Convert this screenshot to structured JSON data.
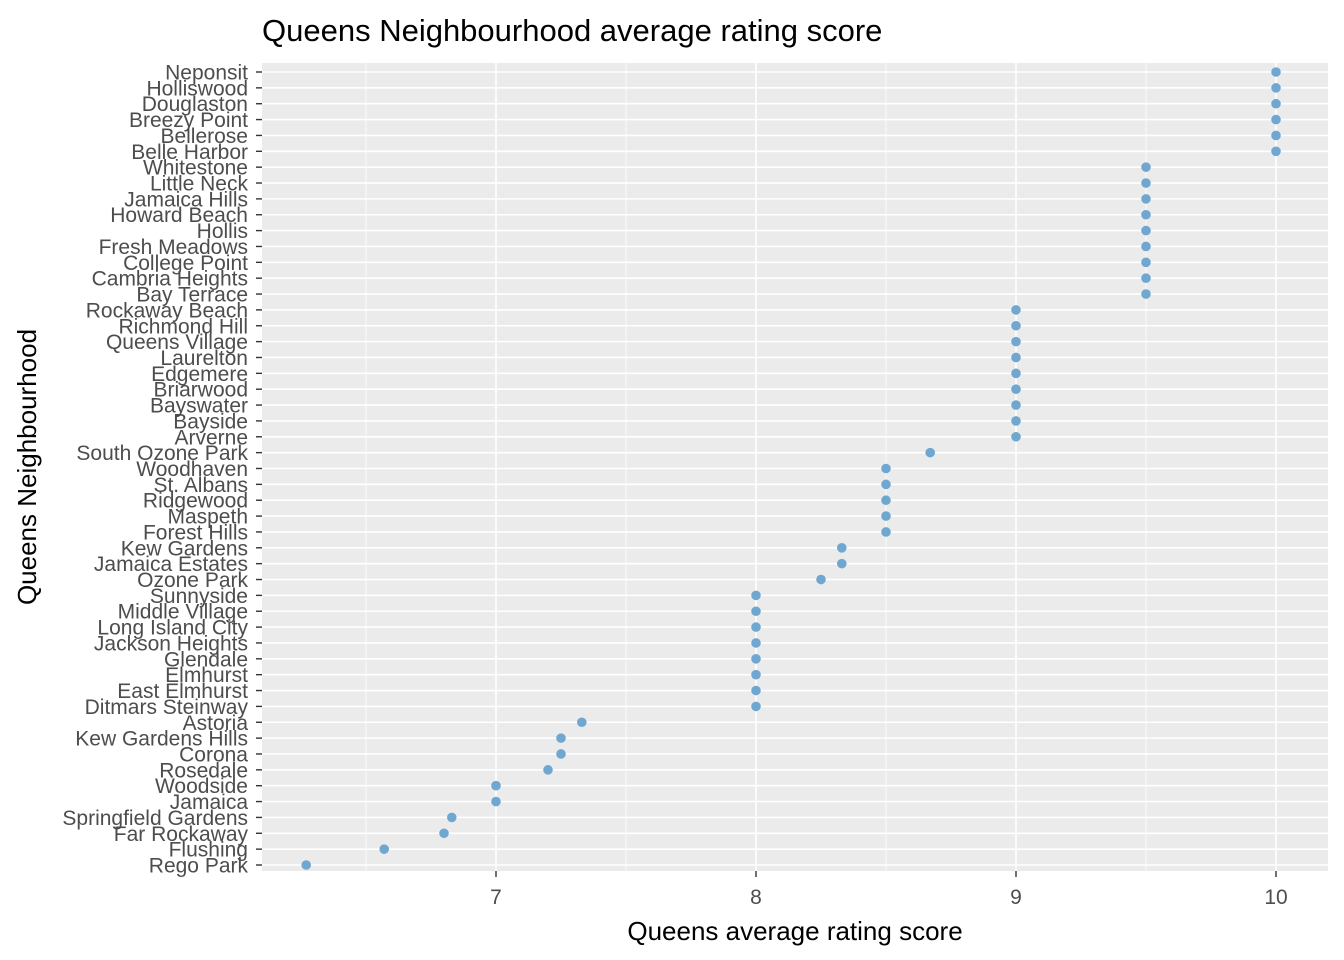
{
  "chart_data": {
    "type": "scatter",
    "title": "Queens Neighbourhood average rating score",
    "xlabel": "Queens average rating score",
    "ylabel": "Queens Neighbourhood",
    "xlim": [
      6.1,
      10.2
    ],
    "x_ticks": [
      7,
      8,
      9,
      10
    ],
    "grid": true,
    "colors": {
      "point": "#6fa7d1",
      "panel": "#ebebeb",
      "grid": "#ffffff"
    },
    "categories": [
      "Neponsit",
      "Holliswood",
      "Douglaston",
      "Breezy Point",
      "Bellerose",
      "Belle Harbor",
      "Whitestone",
      "Little Neck",
      "Jamaica Hills",
      "Howard Beach",
      "Hollis",
      "Fresh Meadows",
      "College Point",
      "Cambria Heights",
      "Bay Terrace",
      "Rockaway Beach",
      "Richmond Hill",
      "Queens Village",
      "Laurelton",
      "Edgemere",
      "Briarwood",
      "Bayswater",
      "Bayside",
      "Arverne",
      "South Ozone Park",
      "Woodhaven",
      "St. Albans",
      "Ridgewood",
      "Maspeth",
      "Forest Hills",
      "Kew Gardens",
      "Jamaica Estates",
      "Ozone Park",
      "Sunnyside",
      "Middle Village",
      "Long Island City",
      "Jackson Heights",
      "Glendale",
      "Elmhurst",
      "East Elmhurst",
      "Ditmars Steinway",
      "Astoria",
      "Kew Gardens Hills",
      "Corona",
      "Rosedale",
      "Woodside",
      "Jamaica",
      "Springfield Gardens",
      "Far Rockaway",
      "Flushing",
      "Rego Park"
    ],
    "values": [
      10,
      10,
      10,
      10,
      10,
      10,
      9.5,
      9.5,
      9.5,
      9.5,
      9.5,
      9.5,
      9.5,
      9.5,
      9.5,
      9,
      9,
      9,
      9,
      9,
      9,
      9,
      9,
      9,
      8.67,
      8.5,
      8.5,
      8.5,
      8.5,
      8.5,
      8.33,
      8.33,
      8.25,
      8,
      8,
      8,
      8,
      8,
      8,
      8,
      8,
      7.33,
      7.25,
      7.25,
      7.2,
      7,
      7,
      6.83,
      6.8,
      6.57,
      6.27
    ]
  }
}
